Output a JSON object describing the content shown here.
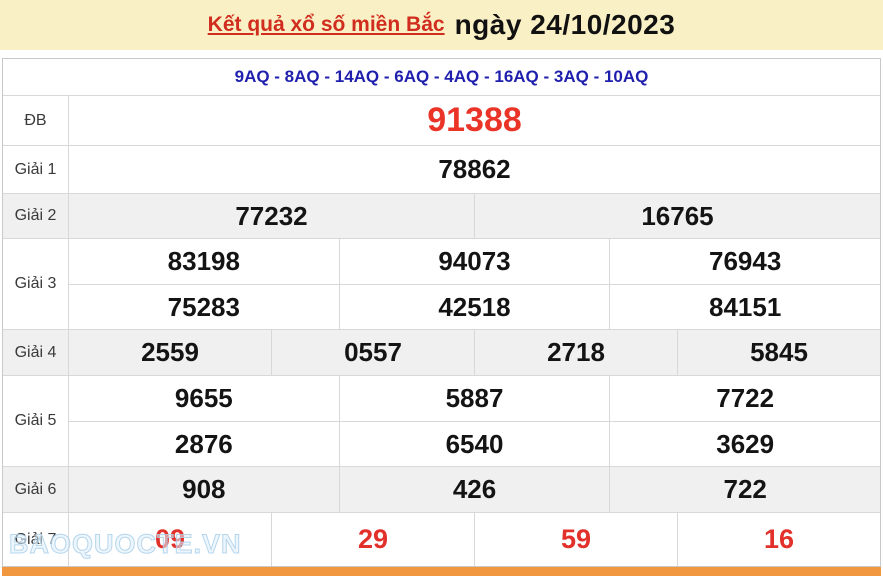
{
  "header": {
    "title_link": "Kết quả xổ số miền Bắc",
    "title_date": "ngày 24/10/2023"
  },
  "codes_line": "9AQ - 8AQ - 14AQ - 6AQ - 4AQ - 16AQ - 3AQ - 10AQ",
  "results": {
    "rows": [
      {
        "key": "db",
        "label": "ĐB",
        "special": true,
        "shade": false,
        "red": false,
        "lines": [
          [
            "91388"
          ]
        ]
      },
      {
        "key": "g1",
        "label": "Giải 1",
        "special": false,
        "shade": false,
        "red": false,
        "lines": [
          [
            "78862"
          ]
        ]
      },
      {
        "key": "g2",
        "label": "Giải 2",
        "special": false,
        "shade": true,
        "red": false,
        "lines": [
          [
            "77232",
            "16765"
          ]
        ]
      },
      {
        "key": "g3",
        "label": "Giải 3",
        "special": false,
        "shade": false,
        "red": false,
        "lines": [
          [
            "83198",
            "94073",
            "76943"
          ],
          [
            "75283",
            "42518",
            "84151"
          ]
        ]
      },
      {
        "key": "g4",
        "label": "Giải 4",
        "special": false,
        "shade": true,
        "red": false,
        "lines": [
          [
            "2559",
            "0557",
            "2718",
            "5845"
          ]
        ]
      },
      {
        "key": "g5",
        "label": "Giải 5",
        "special": false,
        "shade": false,
        "red": false,
        "lines": [
          [
            "9655",
            "5887",
            "7722"
          ],
          [
            "2876",
            "6540",
            "3629"
          ]
        ]
      },
      {
        "key": "g6",
        "label": "Giải 6",
        "special": false,
        "shade": true,
        "red": false,
        "lines": [
          [
            "908",
            "426",
            "722"
          ]
        ]
      },
      {
        "key": "g7",
        "label": "Giải 7",
        "special": false,
        "shade": false,
        "red": true,
        "lines": [
          [
            "09",
            "29",
            "59",
            "16"
          ]
        ]
      }
    ]
  },
  "watermark": "BAOQUOCTE.VN",
  "colors": {
    "banner_background": "#FAF0C6",
    "title_link_red": "#d02d1e",
    "codes_blue": "#1f1fae",
    "special_red": "#ea3428",
    "g7_red": "#e2302a",
    "shade_gray": "#f0f0f0",
    "footer_orange": "#f0973f"
  }
}
